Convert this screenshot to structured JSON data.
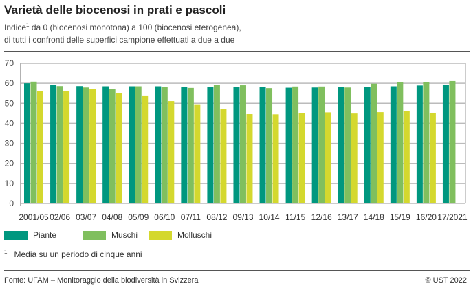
{
  "title": "Varietà delle biocenosi in prati e pascoli",
  "subtitle_line1": "Indice",
  "subtitle_sup": "1",
  "subtitle_line1_rest": " da 0 (biocenosi monotona) a 100 (biocenosi eterogenea),",
  "subtitle_line2": "di tutti i confronti delle superfici campione effettuati a due a due",
  "footnote_mark": "1",
  "footnote": "Media su un periodo di cinque anni",
  "source": "Fonte: UFAM – Monitoraggio della biodiversità in Svizzera",
  "copyright": "© UST 2022",
  "chart_data": {
    "type": "bar",
    "categories": [
      "2001/05",
      "02/06",
      "03/07",
      "04/08",
      "05/09",
      "06/10",
      "07/11",
      "08/12",
      "09/13",
      "10/14",
      "11/15",
      "12/16",
      "13/17",
      "14/18",
      "15/19",
      "16/20",
      "17/2021"
    ],
    "ylim": [
      0,
      70
    ],
    "yticks": [
      0,
      10,
      20,
      30,
      40,
      50,
      60,
      70
    ],
    "grid": true,
    "legend_placement": "bottom",
    "series": [
      {
        "name": "Piante",
        "color": "#00977f",
        "values": [
          60.0,
          59.3,
          58.6,
          58.5,
          58.5,
          58.5,
          58.0,
          58.2,
          58.2,
          58.0,
          57.8,
          57.9,
          58.0,
          58.2,
          58.5,
          58.9,
          59.1
        ]
      },
      {
        "name": "Muschi",
        "color": "#80bf5e",
        "values": [
          60.8,
          58.6,
          57.9,
          57.0,
          58.5,
          58.3,
          57.7,
          59.1,
          59.0,
          57.6,
          58.4,
          58.4,
          57.9,
          59.8,
          60.7,
          60.5,
          61.1
        ]
      },
      {
        "name": "Molluschi",
        "color": "#d4d82e",
        "values": [
          56.2,
          56.0,
          57.0,
          55.2,
          53.9,
          51.1,
          49.2,
          47.0,
          44.6,
          44.5,
          45.2,
          45.5,
          44.9,
          45.6,
          46.2,
          45.3,
          null
        ]
      }
    ]
  }
}
